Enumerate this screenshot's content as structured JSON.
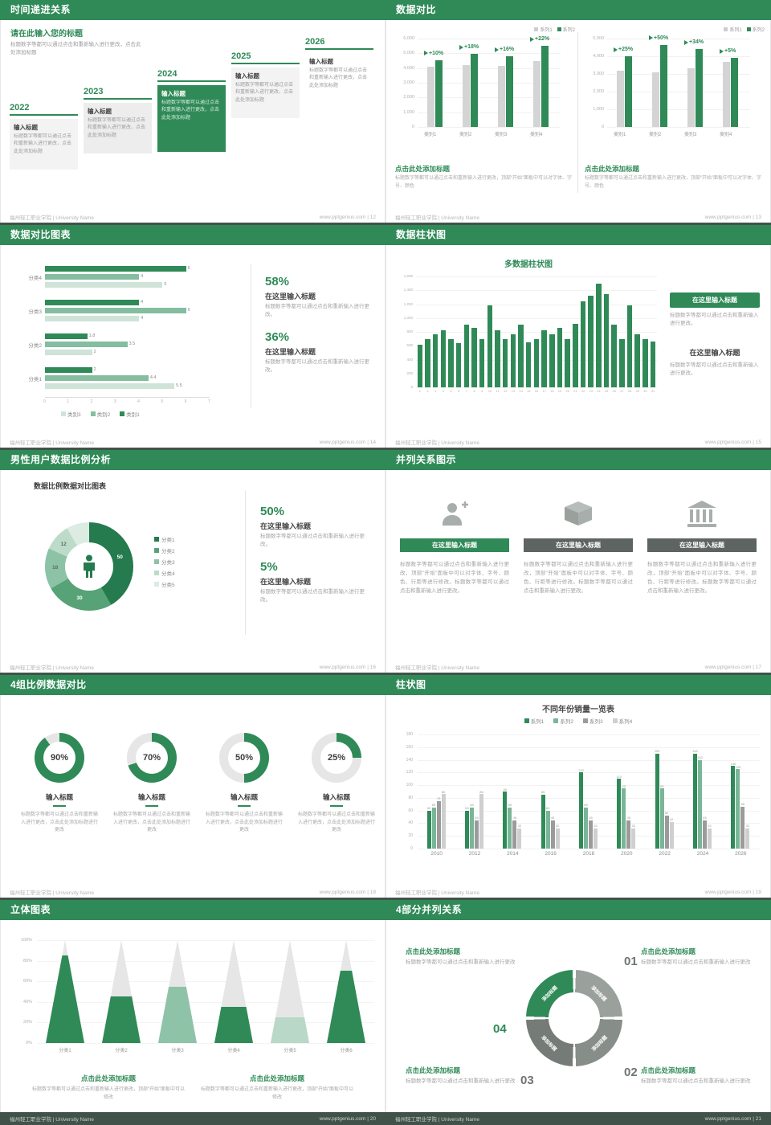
{
  "footer": {
    "school": "福州轻工职业学院 | University Name",
    "site": "www.pptgenius.com",
    "sep": " | "
  },
  "s12": {
    "title": "时间递进关系",
    "page": "12",
    "heading": "请在此输入您的标题",
    "heading_body": "标题数字等都可以通过点击和重新输入进行更改，点击此处添加标题",
    "item_title": "输入标题",
    "item_body": "标题数字等都可以通过点击和重新输入进行更改，点击此处添加标题",
    "years": [
      "2022",
      "2023",
      "2024",
      "2025",
      "2026"
    ],
    "highlight_index": 2
  },
  "s13": {
    "title": "数据对比",
    "page": "13",
    "legend": [
      "系列1",
      "系列2"
    ],
    "caption": "点击此处添加标题",
    "body": "标题数字等都可以通过点击和重新输入进行更改，顶部“开始”面板中可以对字体、字号、颜色",
    "charts": [
      {
        "type": "bar",
        "ymax": 6000,
        "yticks": [
          "6,000",
          "5,000",
          "4,000",
          "3,000",
          "2,000",
          "1,000",
          "0"
        ],
        "categories": [
          "类别1",
          "类别2",
          "类别3",
          "类别4"
        ],
        "pcts": [
          "+10%",
          "+18%",
          "+16%",
          "+22%"
        ],
        "series1": [
          4100,
          4200,
          4150,
          4500
        ],
        "series2": [
          4550,
          4950,
          4800,
          5500
        ]
      },
      {
        "type": "bar",
        "ymax": 5000,
        "yticks": [
          "5,000",
          "4,000",
          "3,000",
          "2,000",
          "1,000",
          "0"
        ],
        "categories": [
          "类别1",
          "类别2",
          "类别3",
          "类别4"
        ],
        "pcts": [
          "+25%",
          "+50%",
          "+34%",
          "+5%"
        ],
        "series1": [
          3200,
          3100,
          3300,
          3700
        ],
        "series2": [
          4000,
          4650,
          4400,
          3900
        ]
      }
    ]
  },
  "s14": {
    "title": "数据对比图表",
    "page": "14",
    "categories": [
      "分类4",
      "分类3",
      "分类2",
      "分类1"
    ],
    "legend": [
      "类别3",
      "类别2",
      "类别1"
    ],
    "colors": [
      "#2f8a57",
      "#84bda0",
      "#cfe3d8"
    ],
    "values": [
      [
        6,
        4,
        5
      ],
      [
        4,
        6,
        4
      ],
      [
        1.8,
        3.5,
        2
      ],
      [
        2,
        4.4,
        5.5
      ]
    ],
    "xmax": 7,
    "xticks": [
      "0",
      "1",
      "2",
      "3",
      "4",
      "5",
      "6",
      "7"
    ],
    "stats": [
      {
        "pct": "58%",
        "title": "在这里输入标题",
        "body": "标题数字等都可以通过点击和重新输入进行更改。"
      },
      {
        "pct": "36%",
        "title": "在这里输入标题",
        "body": "标题数字等都可以通过点击和重新输入进行更改。"
      }
    ]
  },
  "s15": {
    "title": "数据柱状图",
    "page": "15",
    "chart_title": "多数据柱状图",
    "ymax": 1600,
    "yticks": [
      "1,600",
      "1,400",
      "1,200",
      "1,000",
      "800",
      "600",
      "400",
      "200",
      "0"
    ],
    "values": [
      620,
      700,
      760,
      820,
      700,
      640,
      900,
      860,
      700,
      1180,
      820,
      700,
      760,
      900,
      650,
      700,
      820,
      760,
      860,
      700,
      920,
      1240,
      1320,
      1500,
      1340,
      900,
      700,
      1180,
      760,
      700,
      660
    ],
    "blocks": [
      {
        "title": "在这里输入标题",
        "body": "标题数字等都可以通过点击和重新输入进行更改。"
      },
      {
        "title": "在这里输入标题",
        "body": "标题数字等都可以通过点击和重新输入进行更改。"
      }
    ]
  },
  "s16": {
    "title": "男性用户数据比例分析",
    "page": "16",
    "chart_title": "数据比例数据对比图表",
    "legend": [
      "分类1",
      "分类2",
      "分类3",
      "分类4",
      "分类5"
    ],
    "values": [
      50,
      30,
      18,
      12,
      10
    ],
    "labels": [
      "50",
      "30",
      "18",
      "12"
    ],
    "colors": [
      "#257a4e",
      "#57a277",
      "#8cc3a6",
      "#bcdcc9",
      "#dcece3"
    ],
    "stats": [
      {
        "pct": "50%",
        "title": "在这里输入标题",
        "body": "标题数字等都可以通过点击和重新输入进行更改。"
      },
      {
        "pct": "5%",
        "title": "在这里输入标题",
        "body": "标题数字等都可以通过点击和重新输入进行更改。"
      }
    ]
  },
  "s17": {
    "title": "并列关系图示",
    "page": "17",
    "items": [
      {
        "icon": "user-plus-icon",
        "button": "在这里输入标题",
        "body": "标题数字等都可以通过点击和重新输入进行更改，顶部“开始”面板中可以对字体、字号、颜色、行距等进行修改。标题数字等都可以通过点击和重新输入进行更改。"
      },
      {
        "icon": "box-icon",
        "button": "在这里输入标题",
        "body": "标题数字等都可以通过点击和重新输入进行更改，顶部“开始”面板中可以对字体、字号、颜色、行距等进行修改。标题数字等都可以通过点击和重新输入进行更改。"
      },
      {
        "icon": "building-icon",
        "button": "在这里输入标题",
        "body": "标题数字等都可以通过点击和重新输入进行更改，顶部“开始”面板中可以对字体、字号、颜色、行距等进行修改。标题数字等都可以通过点击和重新输入进行更改。"
      }
    ]
  },
  "s18": {
    "title": "4组比例数据对比",
    "page": "18",
    "items": [
      {
        "pct": 90,
        "label": "90%",
        "item_title": "输入标题",
        "body": "标题数字等都可以通过点击和重新输入进行更改，点击此处添加标题进行更改"
      },
      {
        "pct": 70,
        "label": "70%",
        "item_title": "输入标题",
        "body": "标题数字等都可以通过点击和重新输入进行更改，点击此处添加标题进行更改"
      },
      {
        "pct": 50,
        "label": "50%",
        "item_title": "输入标题",
        "body": "标题数字等都可以通过点击和重新输入进行更改，点击此处添加标题进行更改"
      },
      {
        "pct": 25,
        "label": "25%",
        "item_title": "输入标题",
        "body": "标题数字等都可以通过点击和重新输入进行更改，点击此处添加标题进行更改"
      }
    ]
  },
  "s19": {
    "title": "柱状图",
    "page": "19",
    "chart_title": "不同年份销量一览表",
    "legend": [
      "系列1",
      "系列2",
      "系列3",
      "系列4"
    ],
    "colors": [
      "#2f8a57",
      "#79b698",
      "#9b9b9b",
      "#cfcfcf"
    ],
    "years": [
      "2010",
      "2012",
      "2014",
      "2016",
      "2018",
      "2020",
      "2022",
      "2024",
      "2026"
    ],
    "series": [
      {
        "name": "系列1",
        "values": [
          60,
          60,
          90,
          85,
          120,
          110,
          150,
          150,
          130
        ]
      },
      {
        "name": "系列2",
        "values": [
          65,
          65,
          65,
          60,
          65,
          95,
          95,
          140,
          125
        ]
      },
      {
        "name": "系列3",
        "values": [
          75,
          45,
          45,
          45,
          45,
          45,
          52,
          45,
          66
        ]
      },
      {
        "name": "系列4",
        "values": [
          86,
          86,
          32,
          32,
          32,
          32,
          42,
          32,
          32
        ]
      }
    ],
    "ymax": 180,
    "yticks": [
      "180",
      "160",
      "140",
      "120",
      "100",
      "80",
      "60",
      "40",
      "20",
      "0"
    ]
  },
  "s20": {
    "title": "立体图表",
    "page": "20",
    "categories": [
      "分类1",
      "分类2",
      "分类3",
      "分类4",
      "分类5",
      "分类6"
    ],
    "fills": [
      85,
      45,
      55,
      35,
      25,
      70
    ],
    "fill_colors": [
      "#2f8a57",
      "#2f8a57",
      "#8fc3a8",
      "#2f8a57",
      "#b9d8c8",
      "#2f8a57"
    ],
    "yticks": [
      "100%",
      "80%",
      "60%",
      "40%",
      "20%",
      "0%"
    ],
    "blocks": [
      {
        "caption": "点击此处添加标题",
        "body": "标题数字等都可以通过点击和重新输入进行更改，顶部“开始”面板中可以修改"
      },
      {
        "caption": "点击此处添加标题",
        "body": "标题数字等都可以通过点击和重新输入进行更改，顶部“开始”面板中可以修改"
      }
    ]
  },
  "s21": {
    "title": "4部分并列关系",
    "page": "21",
    "arc_label": "添加标题",
    "numbers": [
      "01",
      "02",
      "03",
      "04"
    ],
    "blocks": [
      {
        "caption": "点击此处添加标题",
        "body": "标题数字等都可以通过点击和重新输入进行更改"
      },
      {
        "caption": "点击此处添加标题",
        "body": "标题数字等都可以通过点击和重新输入进行更改"
      },
      {
        "caption": "点击此处添加标题",
        "body": "标题数字等都可以通过点击和重新输入进行更改"
      },
      {
        "caption": "点击此处添加标题",
        "body": "标题数字等都可以通过点击和重新输入进行更改"
      }
    ]
  }
}
